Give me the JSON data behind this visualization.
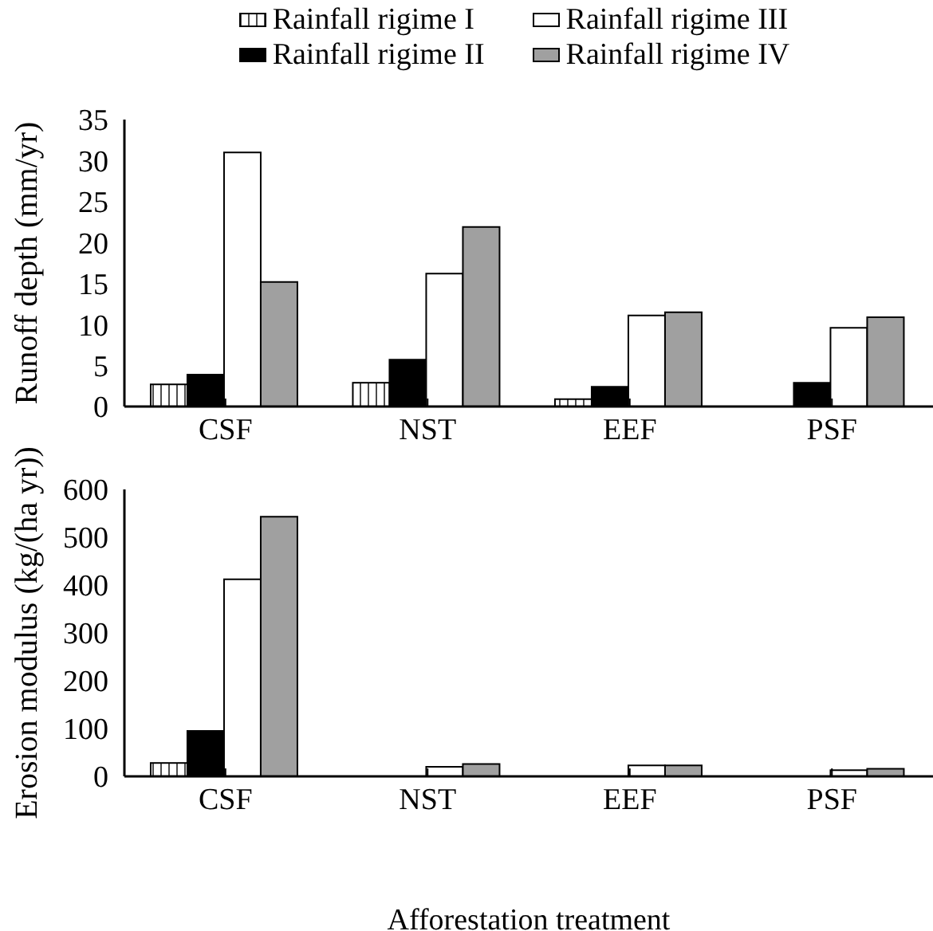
{
  "chart_data": [
    {
      "type": "bar",
      "ylabel": "Runoff depth (mm/yr)",
      "categories": [
        "CSF",
        "NST",
        "EEF",
        "PSF"
      ],
      "legend": "top",
      "series": [
        {
          "name": "Rainfall rigime I",
          "color": "#ffffff",
          "values": [
            2.7,
            2.9,
            0.9,
            null
          ]
        },
        {
          "name": "Rainfall rigime II",
          "color": "#000000",
          "values": [
            3.9,
            5.7,
            2.4,
            2.9
          ]
        },
        {
          "name": "Rainfall rigime III",
          "color": "#ffffff",
          "values": [
            31,
            16.2,
            11.1,
            9.6
          ]
        },
        {
          "name": "Rainfall rigime IV",
          "color": "#a0a0a0",
          "values": [
            15.2,
            21.9,
            11.5,
            10.9
          ]
        }
      ],
      "ylim": [
        0,
        35
      ],
      "yticks": [
        0,
        5,
        10,
        15,
        20,
        25,
        30,
        35
      ],
      "grid": false
    },
    {
      "type": "bar",
      "ylabel": "Erosion modulus (kg/(ha yr))",
      "xlabel": "Afforestation treatment",
      "categories": [
        "CSF",
        "NST",
        "EEF",
        "PSF"
      ],
      "series": [
        {
          "name": "Rainfall rigime I",
          "color": "#ffffff",
          "values": [
            28,
            null,
            null,
            null
          ]
        },
        {
          "name": "Rainfall rigime II",
          "color": "#000000",
          "values": [
            95,
            null,
            null,
            null
          ]
        },
        {
          "name": "Rainfall rigime III",
          "color": "#ffffff",
          "values": [
            412,
            20,
            23,
            13
          ]
        },
        {
          "name": "Rainfall rigime IV",
          "color": "#a0a0a0",
          "values": [
            543,
            26,
            23,
            16
          ]
        }
      ],
      "ylim": [
        0,
        600
      ],
      "yticks": [
        0,
        100,
        200,
        300,
        400,
        500,
        600
      ],
      "grid": false
    }
  ]
}
